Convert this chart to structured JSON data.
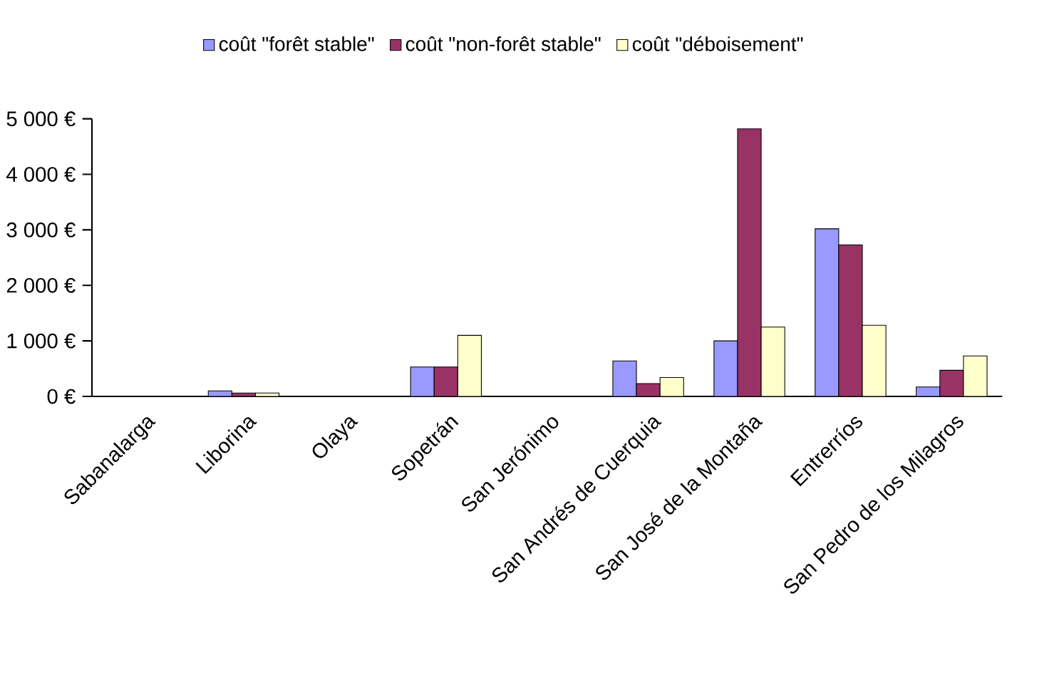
{
  "chart_data": {
    "type": "bar",
    "categories": [
      "Sabanalarga",
      "Liborina",
      "Olaya",
      "Sopetrán",
      "San Jerónimo",
      "San Andrés de Cuerquia",
      "San José de la Montaña",
      "Entrerríos",
      "San Pedro de los Milagros"
    ],
    "series": [
      {
        "name": "coût \"forêt stable\"",
        "color": "#9999ff",
        "values": [
          null,
          100,
          null,
          530,
          null,
          640,
          1000,
          3020,
          170
        ]
      },
      {
        "name": "coût \"non-forêt stable\"",
        "color": "#993366",
        "values": [
          null,
          60,
          null,
          530,
          null,
          230,
          4820,
          2730,
          470
        ]
      },
      {
        "name": "coût \"déboisement\"",
        "color": "#ffffcc",
        "values": [
          null,
          60,
          null,
          1100,
          null,
          340,
          1250,
          1280,
          730
        ]
      }
    ],
    "ylim": [
      0,
      5000
    ],
    "yticks": [
      {
        "value": 0,
        "label": "0 €"
      },
      {
        "value": 1000,
        "label": "1 000 €"
      },
      {
        "value": 2000,
        "label": "2 000 €"
      },
      {
        "value": 3000,
        "label": "3 000 €"
      },
      {
        "value": 4000,
        "label": "4 000 €"
      },
      {
        "value": 5000,
        "label": "5 000 €"
      }
    ],
    "legend": "top",
    "grid": false
  }
}
